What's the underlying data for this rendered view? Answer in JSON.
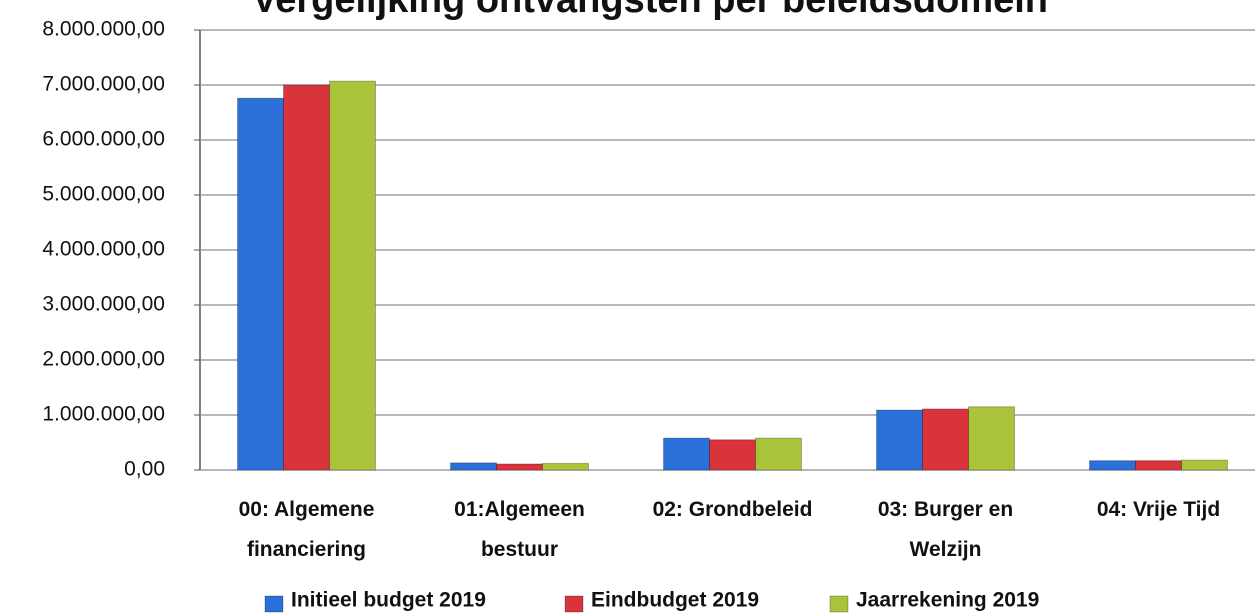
{
  "chart_data": {
    "type": "bar",
    "title": "Vergelijking ontvangsten per beleidsdomein",
    "categories": [
      "00: Algemene financiering",
      "01:Algemeen bestuur",
      "02: Grondbeleid",
      "03: Burger en Welzijn",
      "04: Vrije Tijd"
    ],
    "series": [
      {
        "name": "Initieel budget 2019",
        "color": "#2b6fd8",
        "values": [
          6760000,
          130000,
          580000,
          1090000,
          170000
        ]
      },
      {
        "name": "Eindbudget 2019",
        "color": "#d9333b",
        "values": [
          7000000,
          110000,
          550000,
          1110000,
          170000
        ]
      },
      {
        "name": "Jaarrekening 2019",
        "color": "#a9c33b",
        "values": [
          7070000,
          120000,
          580000,
          1150000,
          180000
        ]
      }
    ],
    "ylim": [
      0,
      8000000
    ],
    "yticks": [
      {
        "value": 0,
        "label": "0,00"
      },
      {
        "value": 1000000,
        "label": "1.000.000,00"
      },
      {
        "value": 2000000,
        "label": "2.000.000,00"
      },
      {
        "value": 3000000,
        "label": "3.000.000,00"
      },
      {
        "value": 4000000,
        "label": "4.000.000,00"
      },
      {
        "value": 5000000,
        "label": "5.000.000,00"
      },
      {
        "value": 6000000,
        "label": "6.000.000,00"
      },
      {
        "value": 7000000,
        "label": "7.000.000,00"
      },
      {
        "value": 8000000,
        "label": "8.000.000,00"
      }
    ],
    "grid": true,
    "legend": "bottom"
  }
}
